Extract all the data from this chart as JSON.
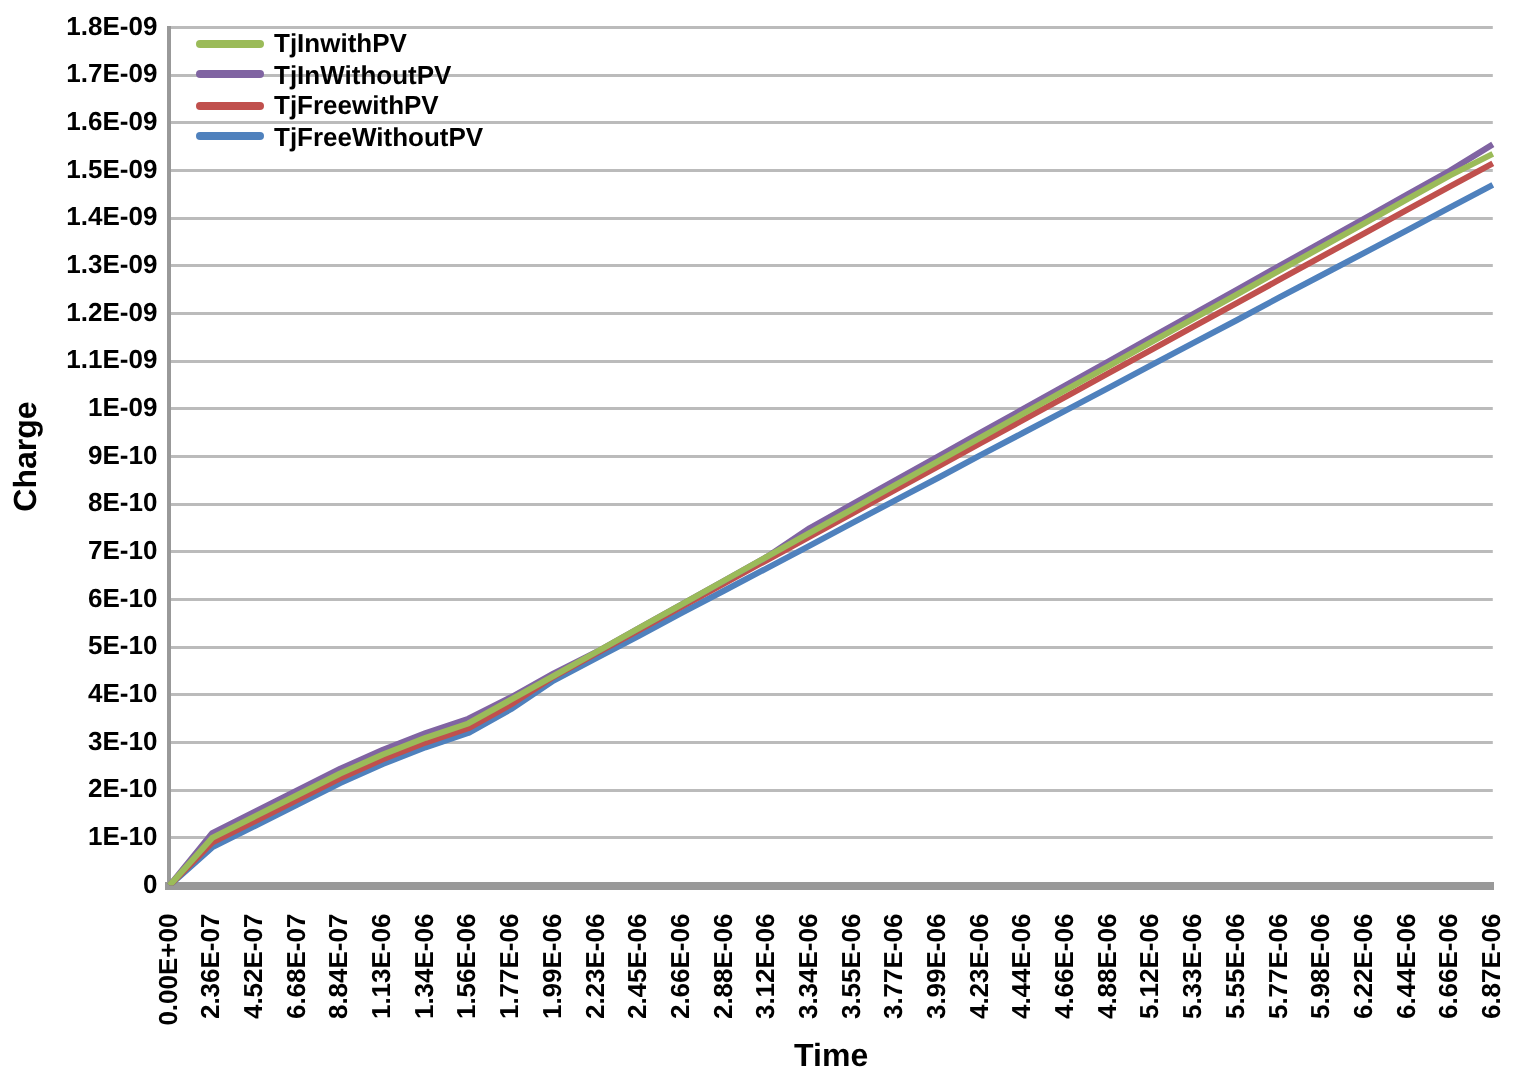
{
  "chart_data": {
    "type": "line",
    "xlabel": "Time",
    "ylabel": "Charge",
    "categories": [
      "0.00E+00",
      "2.36E-07",
      "4.52E-07",
      "6.68E-07",
      "8.84E-07",
      "1.13E-06",
      "1.34E-06",
      "1.56E-06",
      "1.77E-06",
      "1.99E-06",
      "2.23E-06",
      "2.45E-06",
      "2.66E-06",
      "2.88E-06",
      "3.12E-06",
      "3.34E-06",
      "3.55E-06",
      "3.77E-06",
      "3.99E-06",
      "4.23E-06",
      "4.44E-06",
      "4.66E-06",
      "4.88E-06",
      "5.12E-06",
      "5.33E-06",
      "5.55E-06",
      "5.77E-06",
      "5.98E-06",
      "6.22E-06",
      "6.44E-06",
      "6.66E-06",
      "6.87E-06"
    ],
    "series": [
      {
        "name": "TjInwithPV",
        "color": "#9bbb59",
        "values": [
          0,
          1e-10,
          1.45e-10,
          1.9e-10,
          2.35e-10,
          2.75e-10,
          3.1e-10,
          3.4e-10,
          3.9e-10,
          4.4e-10,
          4.9e-10,
          5.4e-10,
          5.9e-10,
          6.4e-10,
          6.9e-10,
          7.4e-10,
          7.9e-10,
          8.4e-10,
          8.9e-10,
          9.4e-10,
          9.9e-10,
          1.04e-09,
          1.09e-09,
          1.14e-09,
          1.19e-09,
          1.24e-09,
          1.29e-09,
          1.34e-09,
          1.39e-09,
          1.44e-09,
          1.49e-09,
          1.535e-09
        ]
      },
      {
        "name": "TjInWithoutPV",
        "color": "#8064a2",
        "values": [
          0,
          1.1e-10,
          1.55e-10,
          2e-10,
          2.45e-10,
          2.85e-10,
          3.2e-10,
          3.5e-10,
          3.95e-10,
          4.45e-10,
          4.9e-10,
          5.4e-10,
          5.9e-10,
          6.4e-10,
          6.9e-10,
          7.5e-10,
          8e-10,
          8.5e-10,
          9e-10,
          9.5e-10,
          1e-09,
          1.05e-09,
          1.1e-09,
          1.15e-09,
          1.2e-09,
          1.25e-09,
          1.3e-09,
          1.35e-09,
          1.4e-09,
          1.45e-09,
          1.5e-09,
          1.555e-09
        ]
      },
      {
        "name": "TjFreewithPV",
        "color": "#c0504d",
        "values": [
          0,
          9e-11,
          1.35e-10,
          1.8e-10,
          2.25e-10,
          2.65e-10,
          3e-10,
          3.3e-10,
          3.8e-10,
          4.38e-10,
          4.87e-10,
          5.36e-10,
          5.85e-10,
          6.34e-10,
          6.83e-10,
          7.32e-10,
          7.81e-10,
          8.3e-10,
          8.79e-10,
          9.28e-10,
          9.77e-10,
          1.026e-09,
          1.075e-09,
          1.124e-09,
          1.173e-09,
          1.222e-09,
          1.271e-09,
          1.32e-09,
          1.369e-09,
          1.418e-09,
          1.467e-09,
          1.515e-09
        ]
      },
      {
        "name": "TjFreeWithoutPV",
        "color": "#4f81bd",
        "values": [
          0,
          8e-11,
          1.25e-10,
          1.7e-10,
          2.15e-10,
          2.55e-10,
          2.9e-10,
          3.2e-10,
          3.7e-10,
          4.3e-10,
          4.77e-10,
          5.24e-10,
          5.72e-10,
          6.19e-10,
          6.66e-10,
          7.13e-10,
          7.61e-10,
          8.08e-10,
          8.55e-10,
          9.03e-10,
          9.5e-10,
          9.97e-10,
          1.044e-09,
          1.092e-09,
          1.139e-09,
          1.186e-09,
          1.234e-09,
          1.281e-09,
          1.328e-09,
          1.375e-09,
          1.423e-09,
          1.47e-09
        ]
      }
    ],
    "ylim": [
      0,
      1.8e-09
    ],
    "yticks": [
      0,
      {
        "value": 1e-10,
        "label": "1E-10"
      },
      {
        "value": 2e-10,
        "label": "2E-10"
      },
      {
        "value": 3e-10,
        "label": "3E-10"
      },
      {
        "value": 4e-10,
        "label": "4E-10"
      },
      {
        "value": 5e-10,
        "label": "5E-10"
      },
      {
        "value": 6e-10,
        "label": "6E-10"
      },
      {
        "value": 7e-10,
        "label": "7E-10"
      },
      {
        "value": 8e-10,
        "label": "8E-10"
      },
      {
        "value": 9e-10,
        "label": "9E-10"
      },
      {
        "value": 1e-09,
        "label": "1E-09"
      },
      {
        "value": 1.1e-09,
        "label": "1.1E-09"
      },
      {
        "value": 1.2e-09,
        "label": "1.2E-09"
      },
      {
        "value": 1.3e-09,
        "label": "1.3E-09"
      },
      {
        "value": 1.4e-09,
        "label": "1.4E-09"
      },
      {
        "value": 1.5e-09,
        "label": "1.5E-09"
      },
      {
        "value": 1.6e-09,
        "label": "1.6E-09"
      },
      {
        "value": 1.7e-09,
        "label": "1.7E-09"
      },
      {
        "value": 1.8e-09,
        "label": "1.8E-09"
      }
    ],
    "grid": "y",
    "legend": "top left",
    "marker": "none",
    "line_style": "solid"
  }
}
